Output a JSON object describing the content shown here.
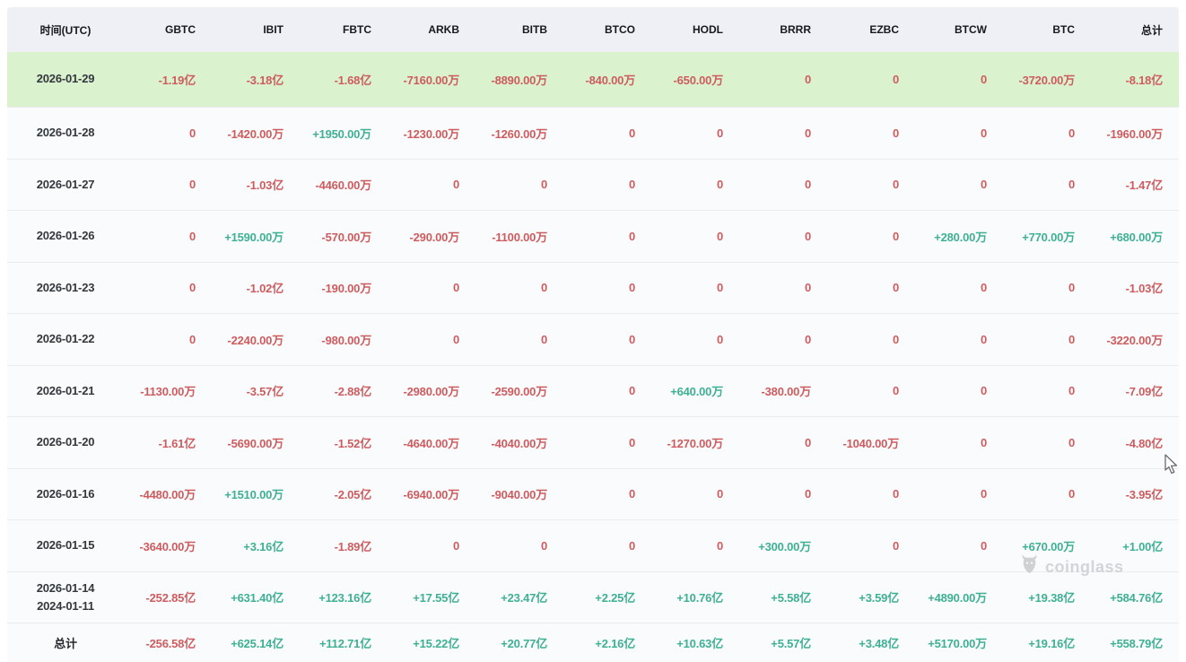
{
  "table": {
    "headers": [
      "时间(UTC)",
      "GBTC",
      "IBIT",
      "FBTC",
      "ARKB",
      "BITB",
      "BTCO",
      "HODL",
      "BRRR",
      "EZBC",
      "BTCW",
      "BTC",
      "总计"
    ],
    "rows": [
      {
        "date": "2026-01-29",
        "date2": "",
        "highlighted": true,
        "values": [
          "-1.19亿",
          "-3.18亿",
          "-1.68亿",
          "-7160.00万",
          "-8890.00万",
          "-840.00万",
          "-650.00万",
          "0",
          "0",
          "0",
          "-3720.00万",
          "-8.18亿"
        ]
      },
      {
        "date": "2026-01-28",
        "date2": "",
        "highlighted": false,
        "values": [
          "0",
          "-1420.00万",
          "+1950.00万",
          "-1230.00万",
          "-1260.00万",
          "0",
          "0",
          "0",
          "0",
          "0",
          "0",
          "-1960.00万"
        ]
      },
      {
        "date": "2026-01-27",
        "date2": "",
        "highlighted": false,
        "values": [
          "0",
          "-1.03亿",
          "-4460.00万",
          "0",
          "0",
          "0",
          "0",
          "0",
          "0",
          "0",
          "0",
          "-1.47亿"
        ]
      },
      {
        "date": "2026-01-26",
        "date2": "",
        "highlighted": false,
        "values": [
          "0",
          "+1590.00万",
          "-570.00万",
          "-290.00万",
          "-1100.00万",
          "0",
          "0",
          "0",
          "0",
          "+280.00万",
          "+770.00万",
          "+680.00万"
        ]
      },
      {
        "date": "2026-01-23",
        "date2": "",
        "highlighted": false,
        "values": [
          "0",
          "-1.02亿",
          "-190.00万",
          "0",
          "0",
          "0",
          "0",
          "0",
          "0",
          "0",
          "0",
          "-1.03亿"
        ]
      },
      {
        "date": "2026-01-22",
        "date2": "",
        "highlighted": false,
        "values": [
          "0",
          "-2240.00万",
          "-980.00万",
          "0",
          "0",
          "0",
          "0",
          "0",
          "0",
          "0",
          "0",
          "-3220.00万"
        ]
      },
      {
        "date": "2026-01-21",
        "date2": "",
        "highlighted": false,
        "values": [
          "-1130.00万",
          "-3.57亿",
          "-2.88亿",
          "-2980.00万",
          "-2590.00万",
          "0",
          "+640.00万",
          "-380.00万",
          "0",
          "0",
          "0",
          "-7.09亿"
        ]
      },
      {
        "date": "2026-01-20",
        "date2": "",
        "highlighted": false,
        "values": [
          "-1.61亿",
          "-5690.00万",
          "-1.52亿",
          "-4640.00万",
          "-4040.00万",
          "0",
          "-1270.00万",
          "0",
          "-1040.00万",
          "0",
          "0",
          "-4.80亿"
        ]
      },
      {
        "date": "2026-01-16",
        "date2": "",
        "highlighted": false,
        "values": [
          "-4480.00万",
          "+1510.00万",
          "-2.05亿",
          "-6940.00万",
          "-9040.00万",
          "0",
          "0",
          "0",
          "0",
          "0",
          "0",
          "-3.95亿"
        ]
      },
      {
        "date": "2026-01-15",
        "date2": "",
        "highlighted": false,
        "values": [
          "-3640.00万",
          "+3.16亿",
          "-1.89亿",
          "0",
          "0",
          "0",
          "0",
          "+300.00万",
          "0",
          "0",
          "+670.00万",
          "+1.00亿"
        ]
      },
      {
        "date": "2026-01-14",
        "date2": "2024-01-11",
        "highlighted": false,
        "values": [
          "-252.85亿",
          "+631.40亿",
          "+123.16亿",
          "+17.55亿",
          "+23.47亿",
          "+2.25亿",
          "+10.76亿",
          "+5.58亿",
          "+3.59亿",
          "+4890.00万",
          "+19.38亿",
          "+584.76亿"
        ]
      }
    ],
    "footer": {
      "label": "总计",
      "values": [
        "-256.58亿",
        "+625.14亿",
        "+112.71亿",
        "+15.22亿",
        "+20.77亿",
        "+2.16亿",
        "+10.63亿",
        "+5.57亿",
        "+3.48亿",
        "+5170.00万",
        "+19.16亿",
        "+558.79亿"
      ]
    }
  },
  "watermark": {
    "brand": "coinglass"
  },
  "colors": {
    "positive": "#3eb095",
    "negative": "#cd5c5f",
    "highlight_row_bg": "#dbf2cf",
    "header_bg": "#eef0f5"
  }
}
